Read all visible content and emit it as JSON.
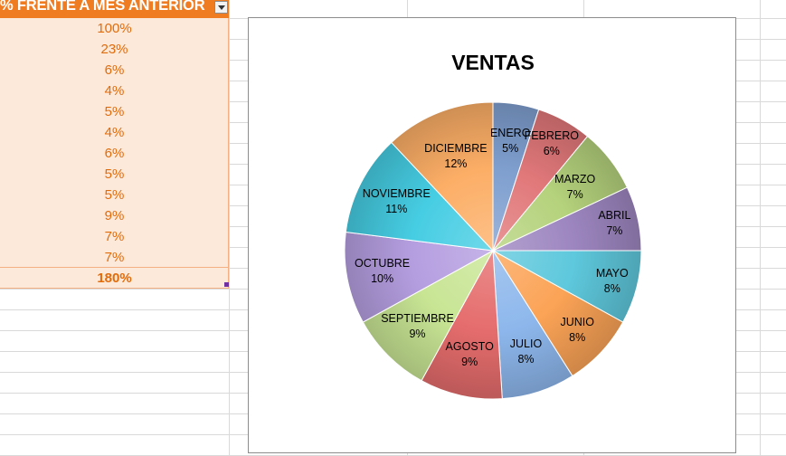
{
  "table": {
    "header": "% FRENTE A MES ANTERIOR",
    "values": [
      "100%",
      "23%",
      "6%",
      "4%",
      "5%",
      "4%",
      "6%",
      "5%",
      "5%",
      "9%",
      "7%",
      "7%"
    ],
    "total": "180%"
  },
  "chart_data": {
    "type": "pie",
    "title": "VENTAS",
    "categories": [
      "ENERO",
      "FEBRERO",
      "MARZO",
      "ABRIL",
      "MAYO",
      "JUNIO",
      "JULIO",
      "AGOSTO",
      "SEPTIEMBRE",
      "OCTUBRE",
      "NOVIEMBRE",
      "DICIEMBRE"
    ],
    "values": [
      5,
      6,
      7,
      7,
      8,
      8,
      8,
      9,
      9,
      10,
      11,
      12
    ],
    "value_labels": [
      "5%",
      "6%",
      "7%",
      "7%",
      "8%",
      "8%",
      "8%",
      "9%",
      "9%",
      "10%",
      "11%",
      "12%"
    ],
    "colors": [
      "#7f9fcf",
      "#e1787a",
      "#b5d27c",
      "#9d86c0",
      "#5ec8dc",
      "#fba356",
      "#8db7ec",
      "#e56c6c",
      "#c8e594",
      "#b59ee0",
      "#46cde3",
      "#fcae66"
    ],
    "legend": "none",
    "data_labels": "category and percentage"
  }
}
